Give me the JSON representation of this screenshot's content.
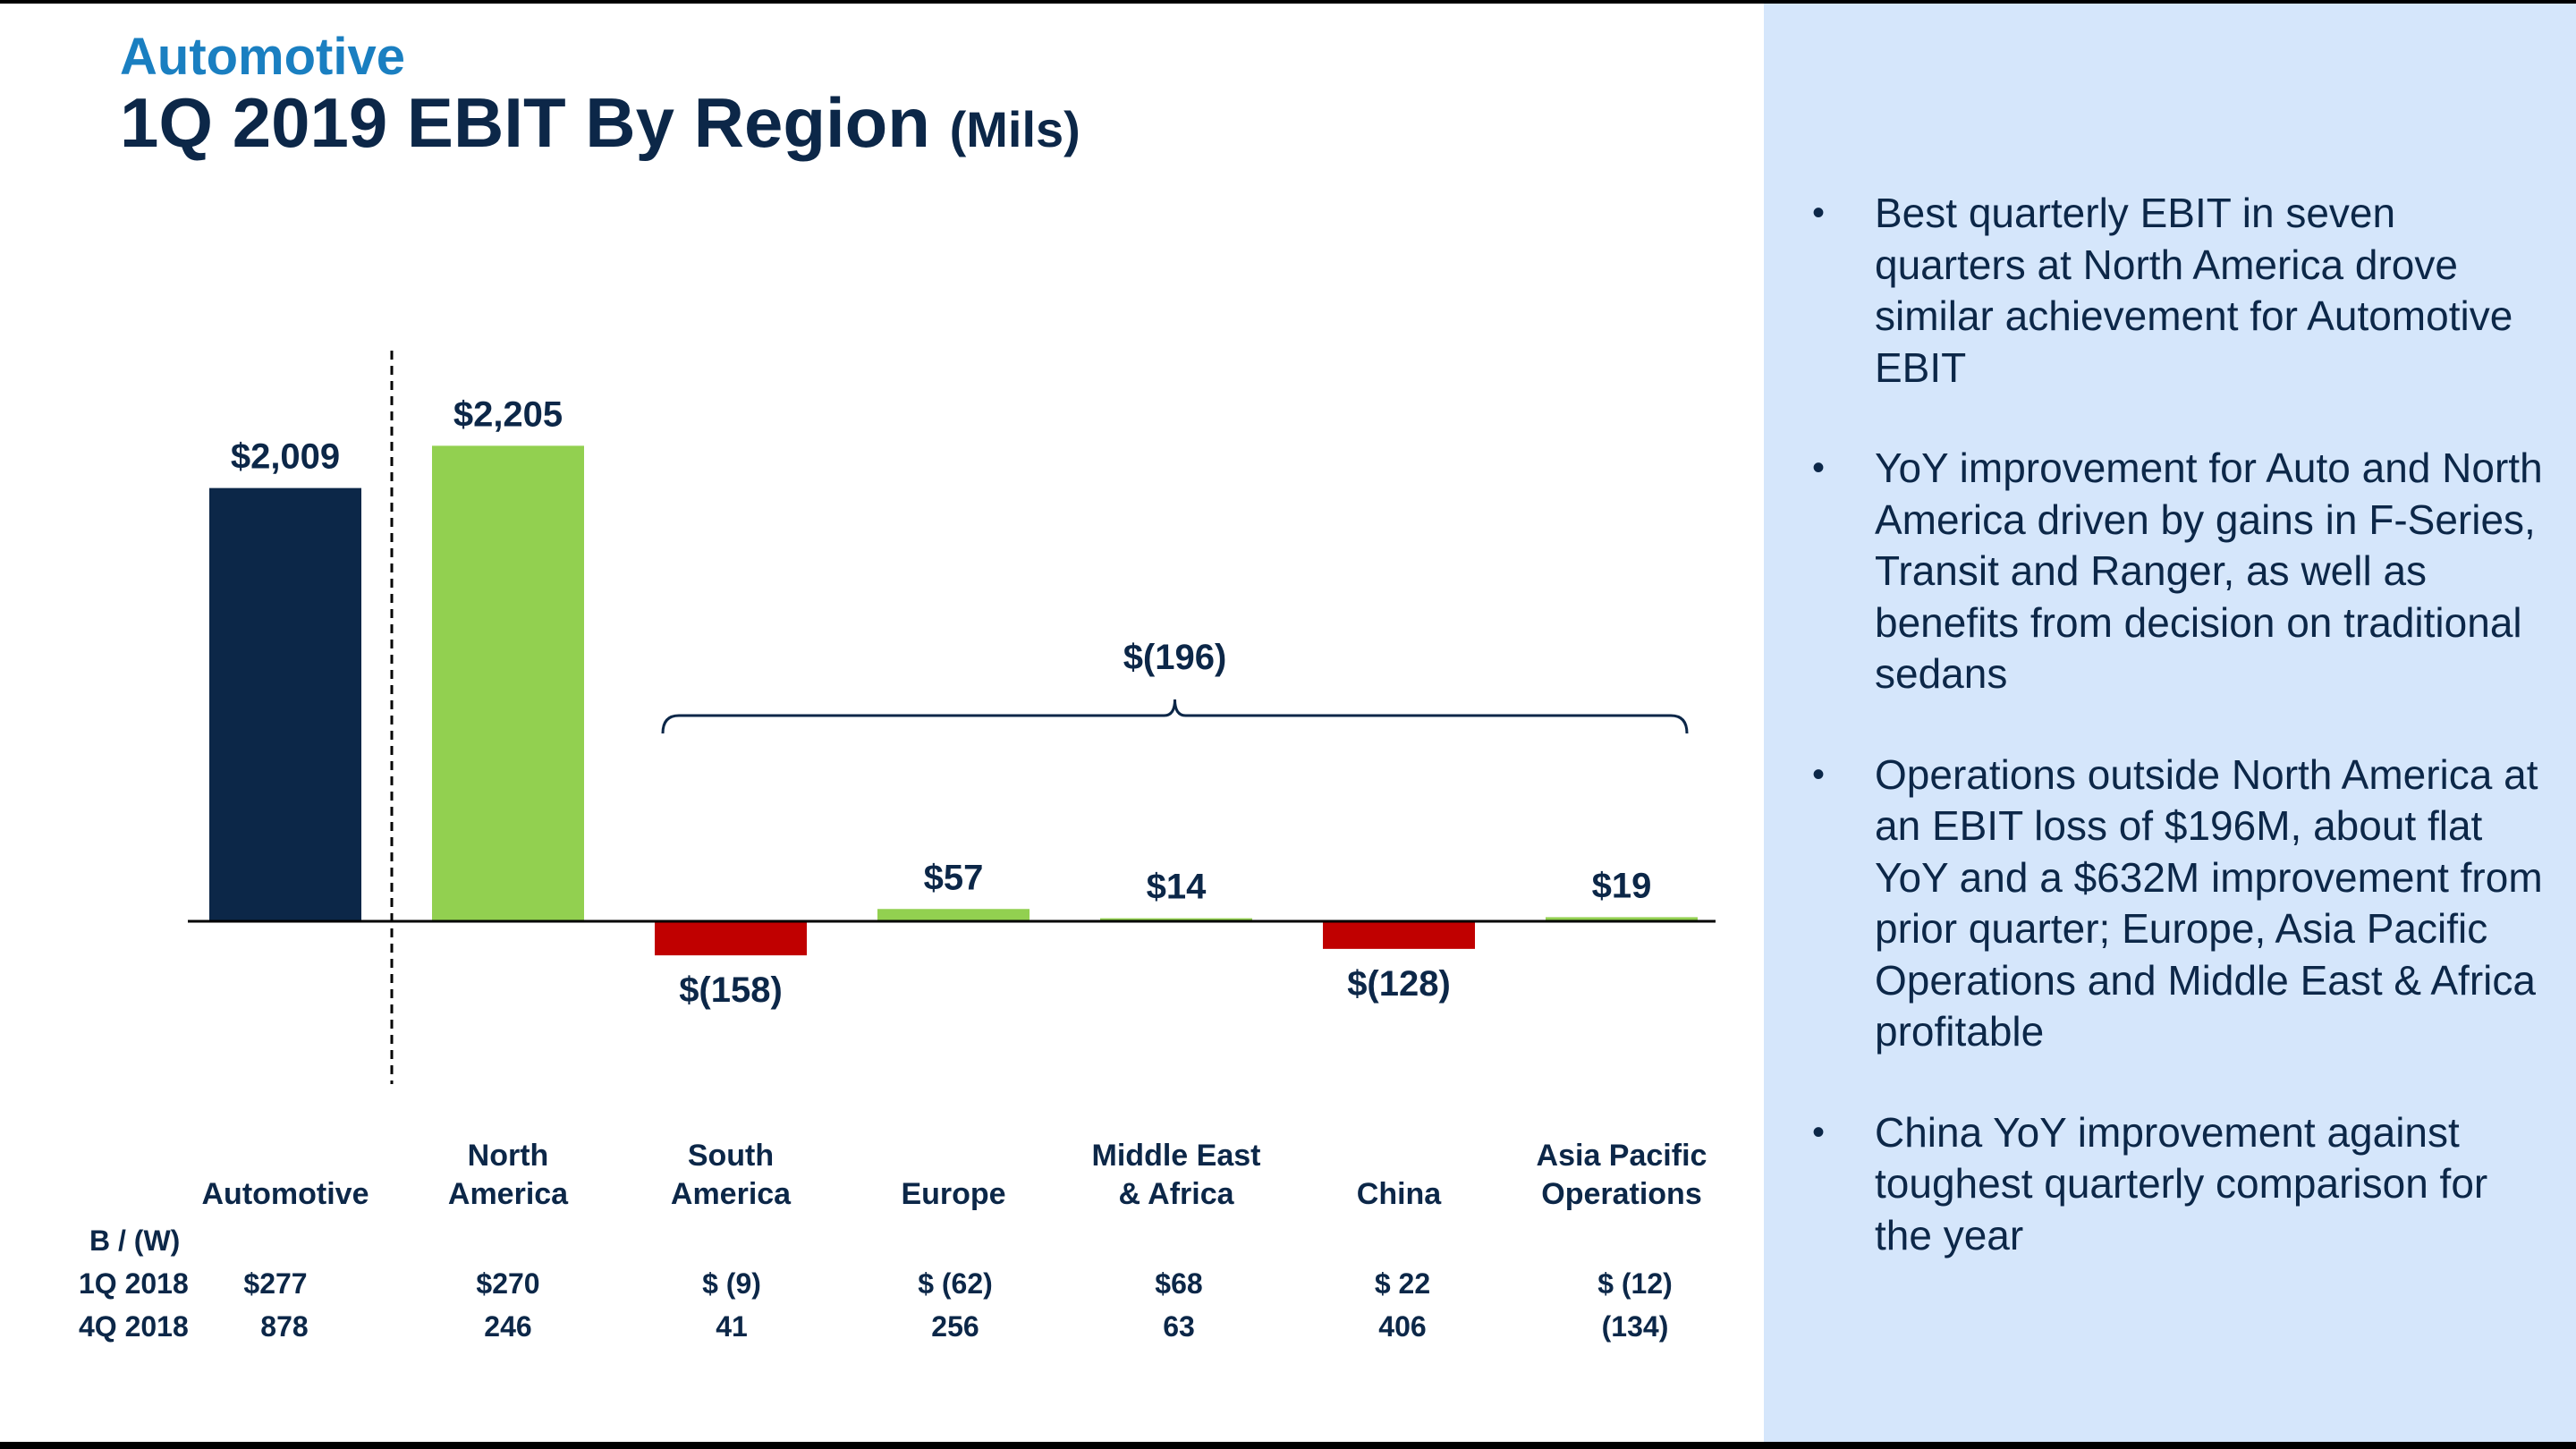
{
  "header": {
    "eyebrow": "Automotive",
    "title": "1Q 2019 EBIT By Region",
    "title_unit": "(Mils)"
  },
  "chart_data": {
    "type": "bar",
    "categories": [
      "Automotive",
      "North America",
      "South America",
      "Europe",
      "Middle East & Africa",
      "China",
      "Asia Pacific Operations"
    ],
    "category_lines": [
      [
        "Automotive"
      ],
      [
        "North",
        "America"
      ],
      [
        "South",
        "America"
      ],
      [
        "Europe"
      ],
      [
        "Middle East",
        "& Africa"
      ],
      [
        "China"
      ],
      [
        "Asia Pacific",
        "Operations"
      ]
    ],
    "values": [
      2009,
      2205,
      -158,
      57,
      14,
      -128,
      19
    ],
    "value_labels": [
      "$2,009",
      "$2,205",
      "$(158)",
      "$57",
      "$14",
      "$(128)",
      "$19"
    ],
    "bar_colors": [
      "#0c2748",
      "#92d050",
      "#c00000",
      "#92d050",
      "#92d050",
      "#c00000",
      "#92d050"
    ],
    "bracket": {
      "label": "$(196)",
      "from_category": "South America",
      "to_category": "Asia Pacific Operations"
    },
    "ylim": [
      -750,
      3000
    ],
    "grid": false
  },
  "comparison_table": {
    "header": "B / (W)",
    "rows": [
      {
        "label": "1Q 2018",
        "values": [
          "$277",
          "$270",
          "$ (9)",
          "$ (62)",
          "$68",
          "$  22",
          "$  (12)"
        ]
      },
      {
        "label": "4Q 2018",
        "values": [
          "878",
          "246",
          "41",
          "256",
          "63",
          "406",
          "(134)"
        ]
      }
    ]
  },
  "colors": {
    "navy": "#0c2748",
    "green": "#92d050",
    "red": "#c00000",
    "accent_blue": "#1a7fc1",
    "panel": "#d5e6fb"
  },
  "bullets": [
    "Best quarterly EBIT in seven quarters at North America drove similar achievement for Automotive EBIT",
    "YoY improvement for Auto and North America driven by gains in F-Series, Transit and Ranger, as well as benefits from decision on traditional sedans",
    "Operations outside North America at an EBIT loss of $196M, about flat YoY and a $632M improvement from prior quarter; Europe, Asia Pacific Operations and Middle East & Africa profitable",
    "China YoY improvement against toughest quarterly comparison for the year"
  ]
}
